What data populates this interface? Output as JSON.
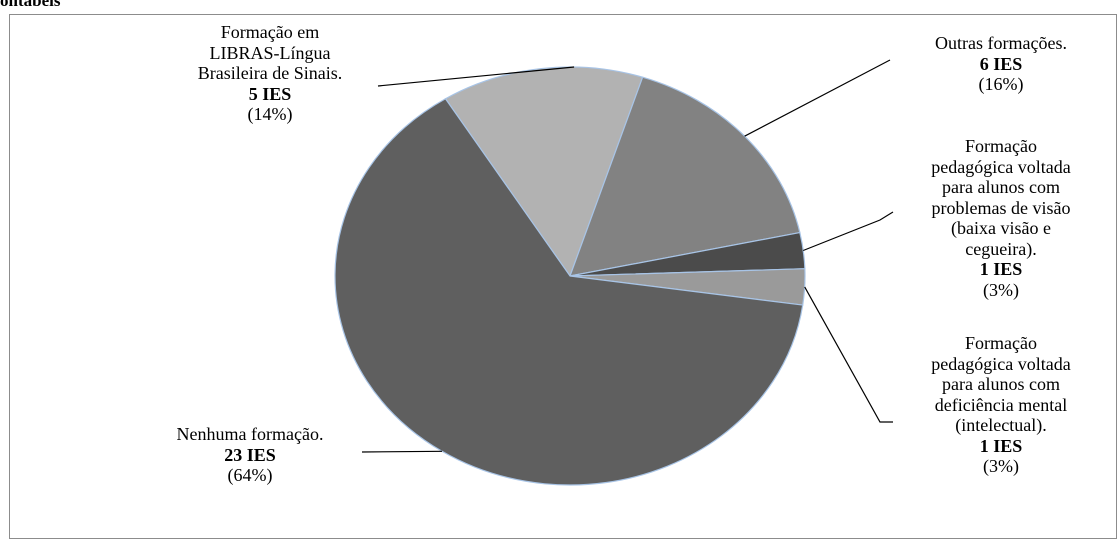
{
  "header": {
    "title_fragment": "ontábeis"
  },
  "chart_data": {
    "type": "pie",
    "slices": [
      {
        "label": "Formação em LIBRAS-Língua Brasileira de Sinais.",
        "lines": [
          "Formação em",
          "LIBRAS-Língua",
          "Brasileira de Sinais."
        ],
        "count_label": "5 IES",
        "percent_label": "(14%)",
        "value": 5,
        "color": "#b2b2b2"
      },
      {
        "label": "Outras formações.",
        "lines": [
          "Outras formações."
        ],
        "count_label": "6 IES",
        "percent_label": "(16%)",
        "value": 6,
        "color": "#828282"
      },
      {
        "label": "Formação pedagógica voltada para alunos com problemas de visão (baixa visão e cegueira).",
        "lines": [
          "Formação",
          "pedagógica voltada",
          "para alunos com",
          "problemas de visão",
          "(baixa visão e",
          "cegueira)."
        ],
        "count_label": "1 IES",
        "percent_label": "(3%)",
        "value": 1,
        "color": "#4b4b4b"
      },
      {
        "label": "Formação pedagógica voltada para alunos com deficiência mental (intelectual).",
        "lines": [
          "Formação",
          "pedagógica voltada",
          "para alunos com",
          "deficiência mental",
          "(intelectual)."
        ],
        "count_label": "1 IES",
        "percent_label": "(3%)",
        "value": 1,
        "color": "#9a9a9a"
      },
      {
        "label": "Nenhuma formação.",
        "lines": [
          "Nenhuma formação."
        ],
        "count_label": "23 IES",
        "percent_label": "(64%)",
        "value": 23,
        "color": "#5f5f5f"
      }
    ],
    "slice_border_color": "#a8c4e6",
    "leader_line_color": "#000000"
  }
}
